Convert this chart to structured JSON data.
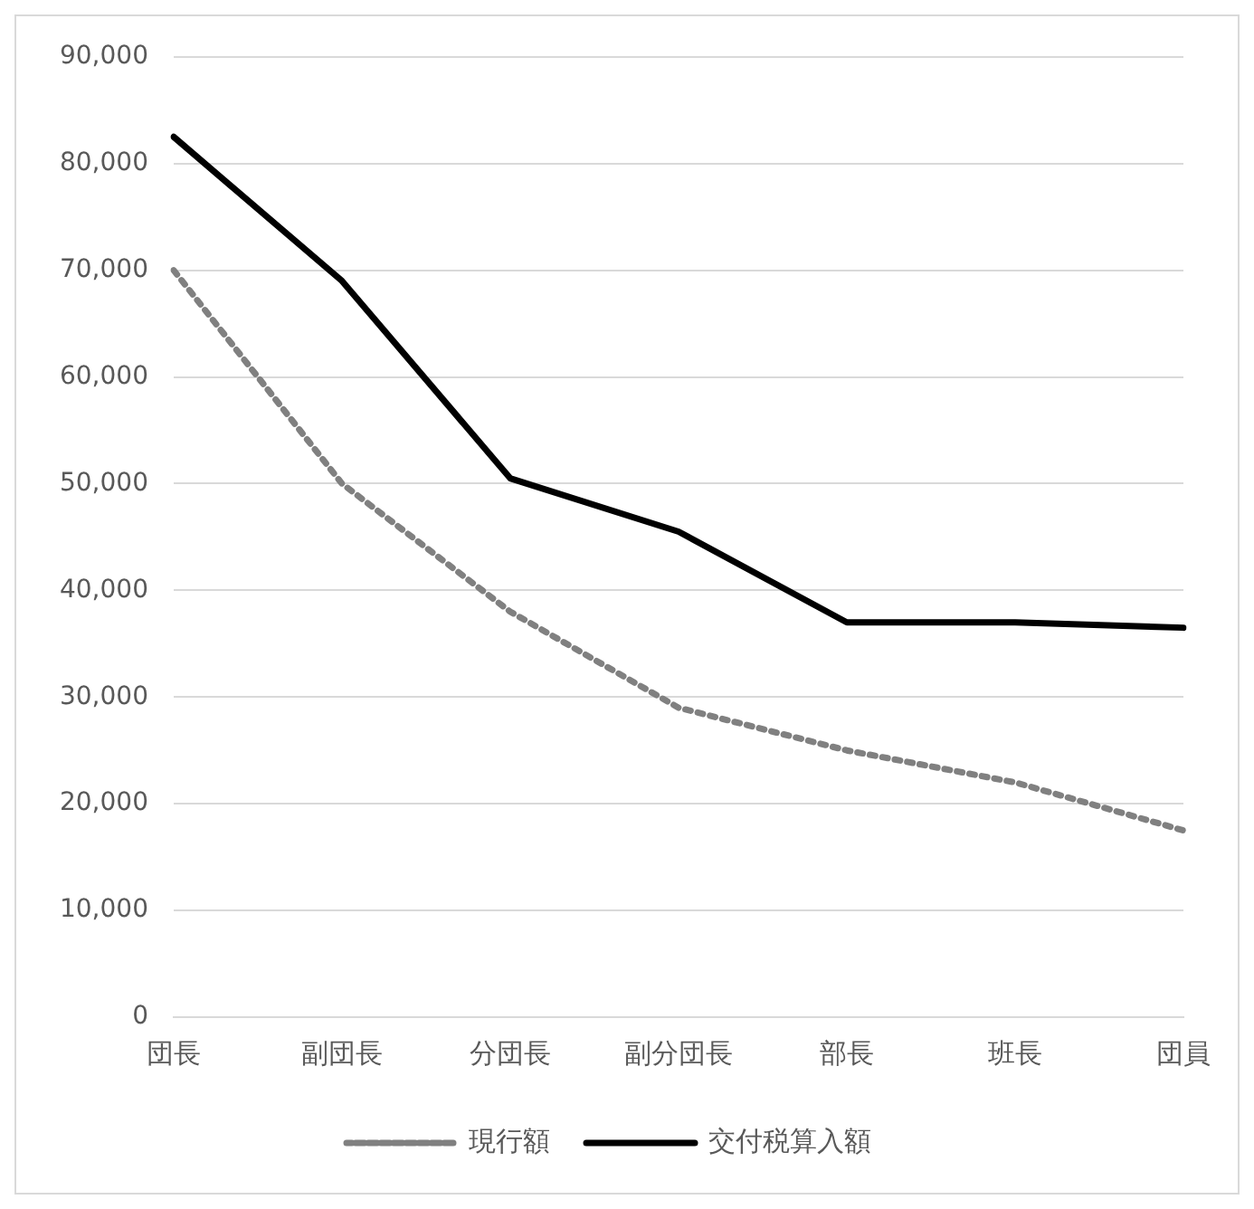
{
  "chart_data": {
    "type": "line",
    "categories": [
      "団長",
      "副団長",
      "分団長",
      "副分団長",
      "部長",
      "班長",
      "団員"
    ],
    "series": [
      {
        "name": "現行額",
        "color": "#808080",
        "line_style": "dotted",
        "values": [
          70000,
          50000,
          38000,
          29000,
          25000,
          22000,
          17500
        ]
      },
      {
        "name": "交付税算入額",
        "color": "#000000",
        "line_style": "solid",
        "values": [
          82500,
          69000,
          50500,
          45500,
          37000,
          37000,
          36500
        ]
      }
    ],
    "ylim": [
      0,
      90000
    ],
    "yticks": [
      {
        "value": 0,
        "label": "0"
      },
      {
        "value": 10000,
        "label": "10,000"
      },
      {
        "value": 20000,
        "label": "20,000"
      },
      {
        "value": 30000,
        "label": "30,000"
      },
      {
        "value": 40000,
        "label": "40,000"
      },
      {
        "value": 50000,
        "label": "50,000"
      },
      {
        "value": 60000,
        "label": "60,000"
      },
      {
        "value": 70000,
        "label": "70,000"
      },
      {
        "value": 80000,
        "label": "80,000"
      },
      {
        "value": 90000,
        "label": "90,000"
      }
    ],
    "grid": "y",
    "legend": "bottom",
    "marker": "none"
  }
}
